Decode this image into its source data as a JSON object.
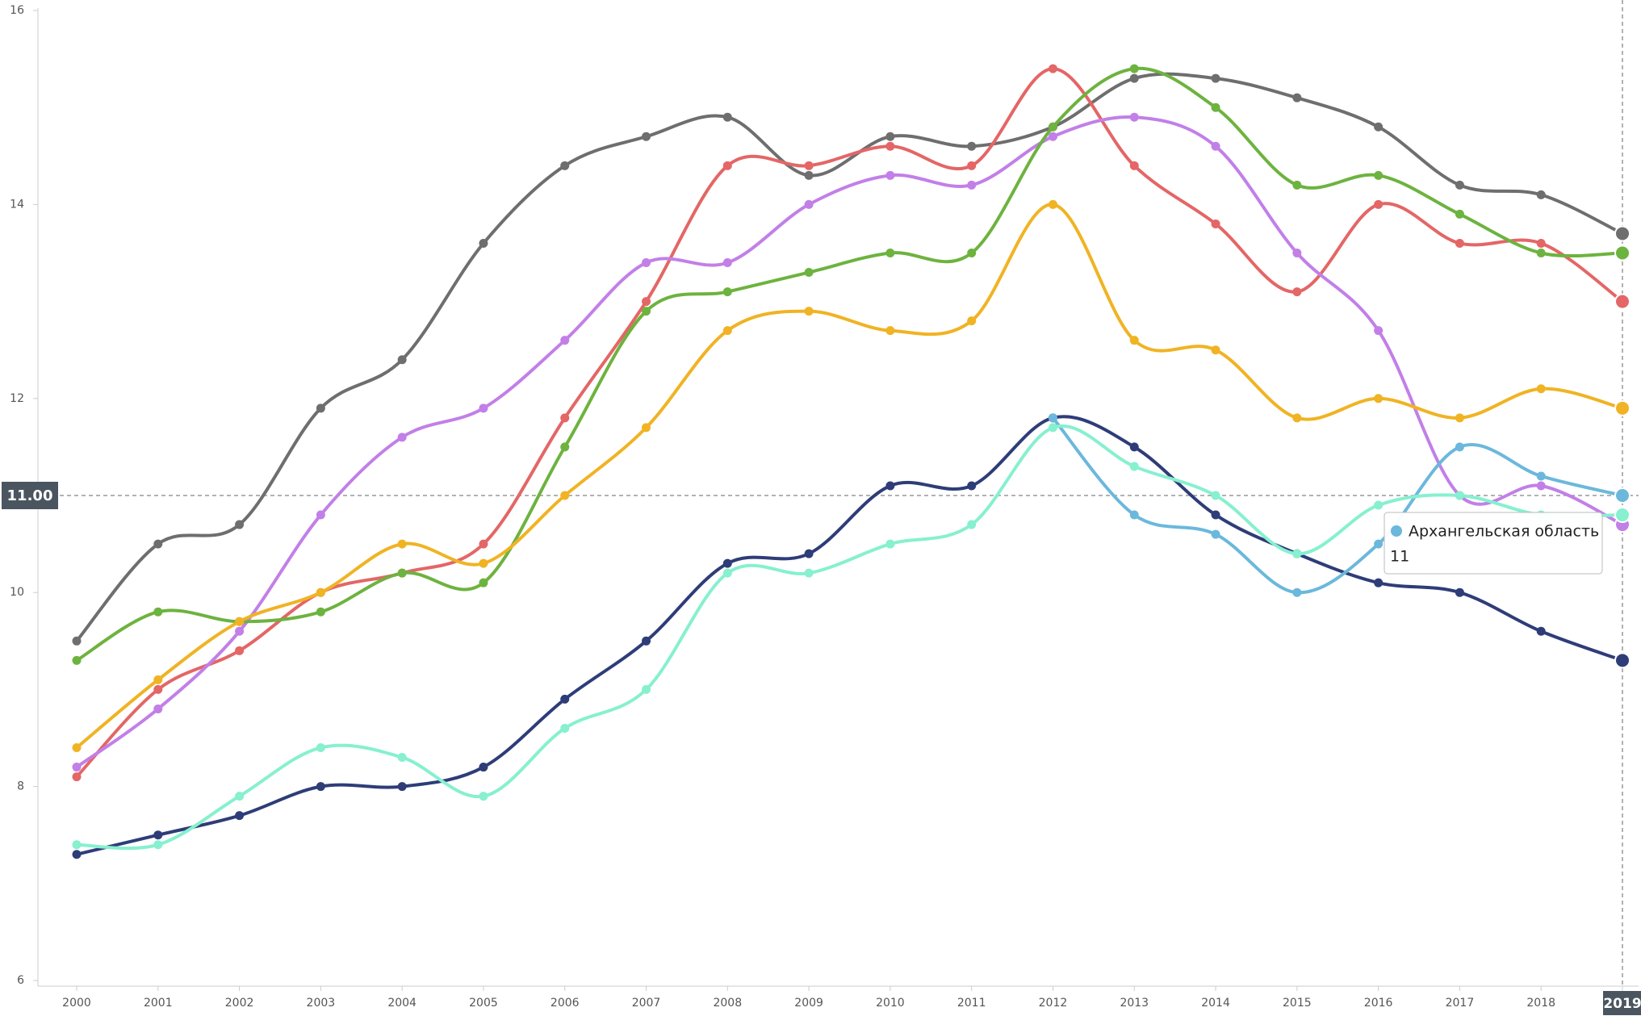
{
  "chart_data": {
    "type": "line",
    "x": [
      2000,
      2001,
      2002,
      2003,
      2004,
      2005,
      2006,
      2007,
      2008,
      2009,
      2010,
      2011,
      2012,
      2013,
      2014,
      2015,
      2016,
      2017,
      2018,
      2019
    ],
    "series": [
      {
        "color": "#6e6e6e",
        "values": [
          9.5,
          10.5,
          10.7,
          11.9,
          12.4,
          13.6,
          14.4,
          14.7,
          14.9,
          14.3,
          14.7,
          14.6,
          14.8,
          15.3,
          15.3,
          15.1,
          14.8,
          14.2,
          14.1,
          13.7
        ]
      },
      {
        "color": "#e46666",
        "values": [
          8.1,
          9.0,
          9.4,
          10.0,
          10.2,
          10.5,
          11.8,
          13.0,
          14.4,
          14.4,
          14.6,
          14.4,
          15.4,
          14.4,
          13.8,
          13.1,
          14.0,
          13.6,
          13.6,
          13.0
        ]
      },
      {
        "color": "#c27fe8",
        "values": [
          8.2,
          8.8,
          9.6,
          10.8,
          11.6,
          11.9,
          12.6,
          13.4,
          13.4,
          14.0,
          14.3,
          14.2,
          14.7,
          14.9,
          14.6,
          13.5,
          12.7,
          11.0,
          11.1,
          10.7
        ]
      },
      {
        "color": "#6db33f",
        "values": [
          9.3,
          9.8,
          9.7,
          9.8,
          10.2,
          10.1,
          11.5,
          12.9,
          13.1,
          13.3,
          13.5,
          13.5,
          14.8,
          15.4,
          15.0,
          14.2,
          14.3,
          13.9,
          13.5,
          13.5
        ]
      },
      {
        "color": "#f0b323",
        "values": [
          8.4,
          9.1,
          9.7,
          10.0,
          10.5,
          10.3,
          11.0,
          11.7,
          12.7,
          12.9,
          12.7,
          12.8,
          14.0,
          12.6,
          12.5,
          11.8,
          12.0,
          11.8,
          12.1,
          11.9
        ]
      },
      {
        "color": "#2e3d78",
        "values": [
          7.3,
          7.5,
          7.7,
          8.0,
          8.0,
          8.2,
          8.9,
          9.5,
          10.3,
          10.4,
          11.1,
          11.1,
          11.8,
          11.5,
          10.8,
          10.4,
          10.1,
          10.0,
          9.6,
          9.3
        ]
      },
      {
        "name": "Архангельская область",
        "color": "#6bb8dc",
        "values": [
          null,
          null,
          null,
          null,
          null,
          null,
          null,
          null,
          null,
          null,
          null,
          null,
          11.8,
          10.8,
          10.6,
          10.0,
          10.5,
          11.5,
          11.2,
          11.0
        ]
      },
      {
        "color": "#86f0cf",
        "values": [
          7.4,
          7.4,
          7.9,
          8.4,
          8.3,
          7.9,
          8.6,
          9.0,
          10.2,
          10.2,
          10.5,
          10.7,
          11.7,
          11.3,
          11.0,
          10.4,
          10.9,
          11.0,
          10.8,
          10.8
        ]
      }
    ],
    "xlim": [
      2000,
      2019
    ],
    "xticks": [
      2000,
      2001,
      2002,
      2003,
      2004,
      2005,
      2006,
      2007,
      2008,
      2009,
      2010,
      2011,
      2012,
      2013,
      2014,
      2015,
      2016,
      2017,
      2018,
      2019
    ],
    "ylim": [
      6,
      16
    ],
    "yticks": [
      6,
      8,
      10,
      12,
      14,
      16
    ],
    "crosshair": {
      "y": {
        "value": 11,
        "label": "11.00"
      },
      "x": 2019
    },
    "tooltip": {
      "name": "Архангельская область",
      "value": 11
    }
  }
}
